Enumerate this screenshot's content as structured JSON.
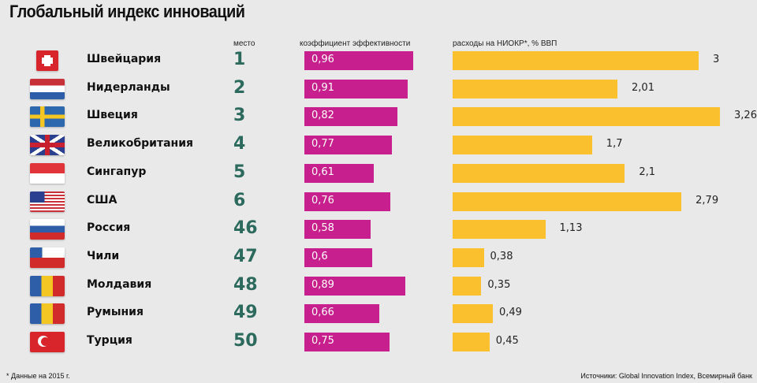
{
  "chart_data": {
    "type": "bar",
    "title": "Глобальный индекс инноваций",
    "columns": {
      "rank": "место",
      "efficiency": "коэффициент эффективности",
      "rnd": "расходы на НИОКР*, % ВВП"
    },
    "categories": [
      "Швейцария",
      "Нидерланды",
      "Швеция",
      "Великобритания",
      "Сингапур",
      "США",
      "Россия",
      "Чили",
      "Молдавия",
      "Румыния",
      "Турция"
    ],
    "ranks": [
      "1",
      "2",
      "3",
      "4",
      "5",
      "6",
      "46",
      "47",
      "48",
      "49",
      "50"
    ],
    "series": [
      {
        "name": "коэффициент эффективности",
        "color": "#c71f8e",
        "values": [
          0.96,
          0.91,
          0.82,
          0.77,
          0.61,
          0.76,
          0.58,
          0.6,
          0.89,
          0.66,
          0.75
        ],
        "labels": [
          "0,96",
          "0,91",
          "0,82",
          "0,77",
          "0,61",
          "0,76",
          "0,58",
          "0,6",
          "0,89",
          "0,66",
          "0,75"
        ]
      },
      {
        "name": "расходы на НИОКР*, % ВВП",
        "color": "#fbc02d",
        "values": [
          3,
          2.01,
          3.26,
          1.7,
          2.1,
          2.79,
          1.13,
          0.38,
          0.35,
          0.49,
          0.45
        ],
        "labels": [
          "3",
          "2,01",
          "3,26",
          "1,7",
          "2,1",
          "2,79",
          "1,13",
          "0,38",
          "0,35",
          "0,49",
          "0,45"
        ]
      }
    ],
    "flags": [
      "switzerland",
      "netherlands",
      "sweden",
      "uk",
      "singapore",
      "usa",
      "russia",
      "chile",
      "moldova",
      "romania",
      "turkey"
    ],
    "footnote": "* Данные на 2015 г.",
    "source": "Источники: Global Innovation Index, Всемирный банк"
  }
}
